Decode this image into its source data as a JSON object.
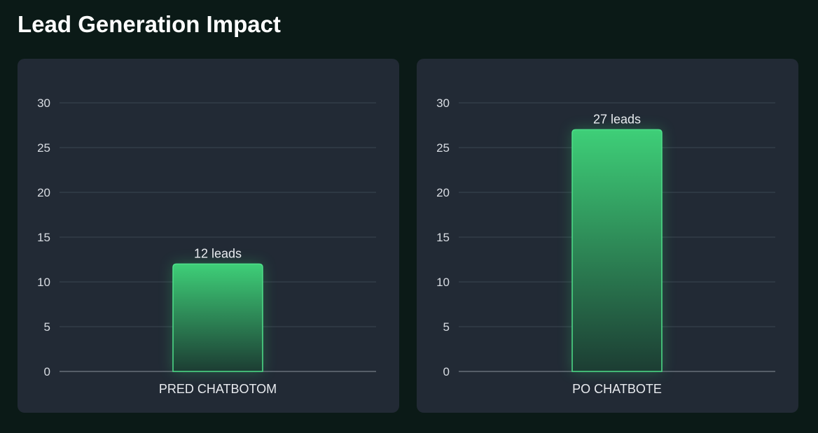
{
  "title": "Lead Generation Impact",
  "colors": {
    "bar_top": "#3ecf78",
    "bar_bottom": "#1c3d33",
    "panel": "#222a35",
    "background": "#0b1a17"
  },
  "chart_data": [
    {
      "type": "bar",
      "categories": [
        "PRED CHATBOTOM"
      ],
      "values": [
        12
      ],
      "data_labels": [
        "12 leads"
      ],
      "ylim": [
        0,
        30
      ],
      "yticks": [
        0,
        5,
        10,
        15,
        20,
        25,
        30
      ],
      "grid": true
    },
    {
      "type": "bar",
      "categories": [
        "PO CHATBOTE"
      ],
      "values": [
        27
      ],
      "data_labels": [
        "27 leads"
      ],
      "ylim": [
        0,
        30
      ],
      "yticks": [
        0,
        5,
        10,
        15,
        20,
        25,
        30
      ],
      "grid": true
    }
  ]
}
